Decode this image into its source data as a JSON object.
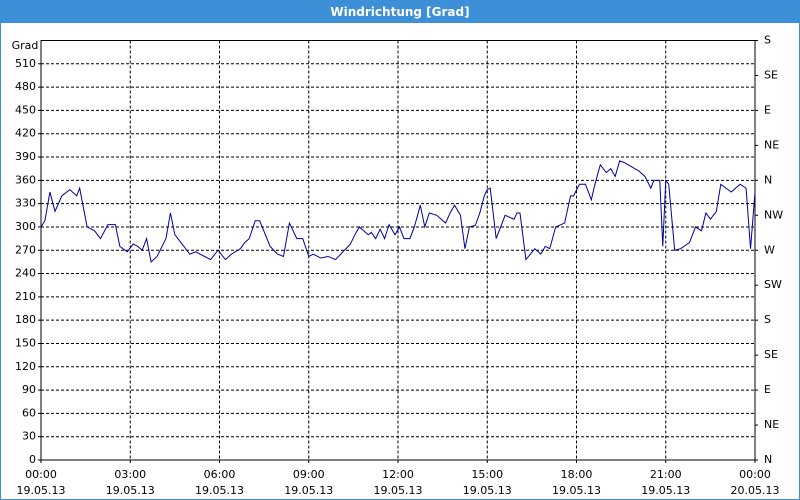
{
  "chart_data": {
    "type": "line",
    "title": "Windrichtung [Grad]",
    "y_label": "Grad",
    "x": [
      0,
      0.13,
      0.3,
      0.47,
      0.7,
      0.97,
      1.2,
      1.3,
      1.55,
      1.8,
      2.0,
      2.25,
      2.5,
      2.65,
      2.9,
      3.1,
      3.25,
      3.4,
      3.55,
      3.7,
      3.9,
      4.2,
      4.35,
      4.5,
      4.8,
      5.0,
      5.2,
      5.35,
      5.7,
      5.95,
      6.2,
      6.4,
      6.7,
      6.85,
      7.0,
      7.2,
      7.35,
      7.7,
      7.95,
      8.15,
      8.35,
      8.6,
      8.8,
      9.0,
      9.15,
      9.4,
      9.65,
      9.9,
      10.2,
      10.4,
      10.55,
      10.7,
      11.0,
      11.1,
      11.25,
      11.4,
      11.55,
      11.7,
      11.9,
      12.05,
      12.2,
      12.4,
      12.55,
      12.75,
      12.9,
      13.05,
      13.3,
      13.6,
      13.75,
      13.9,
      14.1,
      14.25,
      14.4,
      14.6,
      14.75,
      14.9,
      15.0,
      15.1,
      15.3,
      15.6,
      15.9,
      16.0,
      16.1,
      16.3,
      16.6,
      16.8,
      16.95,
      17.1,
      17.3,
      17.6,
      17.8,
      17.9,
      18.1,
      18.3,
      18.5,
      18.6,
      18.8,
      19.0,
      19.15,
      19.3,
      19.45,
      19.6,
      20.1,
      20.3,
      20.5,
      20.6,
      20.8,
      20.9,
      21.0,
      21.1,
      21.3,
      21.5,
      21.8,
      22.0,
      22.2,
      22.35,
      22.5,
      22.7,
      22.85,
      23.2,
      23.35,
      23.5,
      23.7,
      23.85,
      24.0
    ],
    "series": [
      {
        "name": "Windrichtung",
        "color": "#0000a0",
        "values": [
          300,
          308,
          345,
          320,
          340,
          348,
          340,
          350,
          300,
          295,
          285,
          303,
          303,
          275,
          268,
          278,
          275,
          270,
          285,
          255,
          262,
          285,
          318,
          290,
          275,
          265,
          268,
          265,
          258,
          270,
          258,
          265,
          272,
          280,
          285,
          308,
          308,
          275,
          265,
          262,
          305,
          285,
          285,
          262,
          265,
          260,
          262,
          258,
          270,
          278,
          290,
          300,
          290,
          293,
          285,
          297,
          285,
          303,
          290,
          300,
          285,
          285,
          300,
          328,
          300,
          318,
          315,
          305,
          318,
          328,
          315,
          272,
          300,
          302,
          318,
          340,
          348,
          350,
          285,
          315,
          310,
          318,
          318,
          258,
          272,
          265,
          275,
          272,
          300,
          305,
          340,
          340,
          355,
          355,
          335,
          352,
          380,
          370,
          375,
          365,
          385,
          383,
          372,
          365,
          350,
          360,
          360,
          275,
          360,
          355,
          270,
          272,
          280,
          300,
          295,
          318,
          310,
          320,
          355,
          345,
          350,
          355,
          350,
          272,
          345
        ]
      }
    ],
    "xlim": [
      0,
      24
    ],
    "xticks": [
      {
        "value": 0,
        "label": "00:00"
      },
      {
        "value": 3,
        "label": "03:00"
      },
      {
        "value": 6,
        "label": "06:00"
      },
      {
        "value": 9,
        "label": "09:00"
      },
      {
        "value": 12,
        "label": "12:00"
      },
      {
        "value": 15,
        "label": "15:00"
      },
      {
        "value": 18,
        "label": "18:00"
      },
      {
        "value": 21,
        "label": "21:00"
      },
      {
        "value": 24,
        "label": "00:00"
      }
    ],
    "xtick_dates": [
      "19.05.13",
      "19.05.13",
      "19.05.13",
      "19.05.13",
      "19.05.13",
      "19.05.13",
      "19.05.13",
      "19.05.13",
      "20.05.13"
    ],
    "ylim": [
      0,
      540
    ],
    "yticks": [
      0,
      30,
      60,
      90,
      120,
      150,
      180,
      210,
      240,
      270,
      300,
      330,
      360,
      390,
      420,
      450,
      480,
      510
    ],
    "y2lim": [
      0,
      540
    ],
    "y2ticks": [
      {
        "value": 0,
        "label": "N"
      },
      {
        "value": 45,
        "label": "NE"
      },
      {
        "value": 90,
        "label": "E"
      },
      {
        "value": 135,
        "label": "SE"
      },
      {
        "value": 180,
        "label": "S"
      },
      {
        "value": 225,
        "label": "SW"
      },
      {
        "value": 270,
        "label": "W"
      },
      {
        "value": 315,
        "label": "NW"
      },
      {
        "value": 360,
        "label": "N"
      },
      {
        "value": 405,
        "label": "NE"
      },
      {
        "value": 450,
        "label": "E"
      },
      {
        "value": 495,
        "label": "SE"
      },
      {
        "value": 540,
        "label": "S"
      }
    ],
    "grid": true
  }
}
